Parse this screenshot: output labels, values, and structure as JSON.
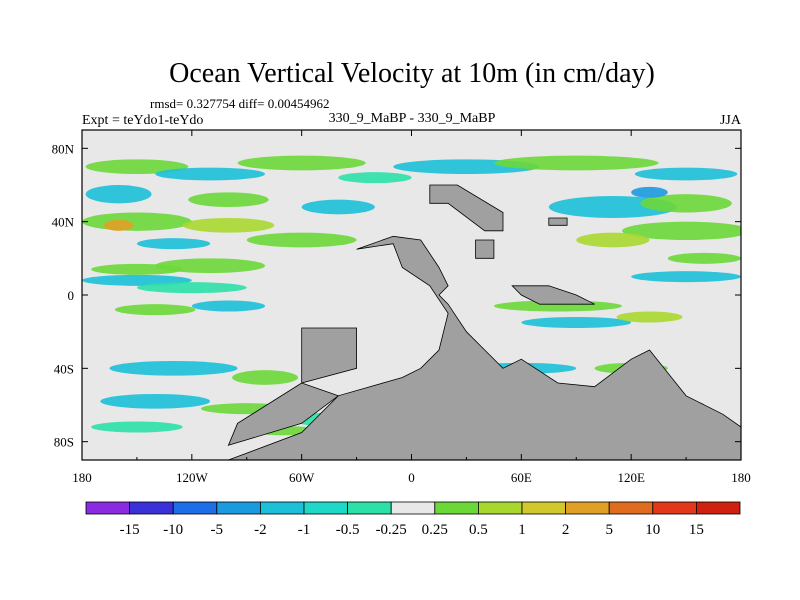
{
  "chart_data": {
    "type": "heatmap",
    "title": "Ocean Vertical Velocity at 10m (in cm/day)",
    "stats_line": "rmsd= 0.327754 diff= 0.00454962",
    "left_label": "Expt = teYdo1-teYdo",
    "center_label": "330_9_MaBP - 330_9_MaBP",
    "right_label": "JJA",
    "x_ticks": [
      "180",
      "120W",
      "60W",
      "0",
      "60E",
      "120E",
      "180"
    ],
    "x_tick_values": [
      -180,
      -120,
      -60,
      0,
      60,
      120,
      180
    ],
    "y_ticks": [
      "80N",
      "40N",
      "0",
      "40S",
      "80S"
    ],
    "y_tick_values": [
      80,
      40,
      0,
      -40,
      -80
    ],
    "xlim": [
      -180,
      180
    ],
    "ylim": [
      -90,
      90
    ],
    "colorbar_labels": [
      "-15",
      "-10",
      "-5",
      "-2",
      "-1",
      "-0.5",
      "-0.25",
      "0.25",
      "0.5",
      "1",
      "2",
      "5",
      "10",
      "15"
    ],
    "colorbar_colors": [
      "#8a2be2",
      "#3a32d8",
      "#1e6ee8",
      "#1c9ae0",
      "#1cc0d8",
      "#20d8c8",
      "#2ce0a8",
      "#e8e8e8",
      "#6cd838",
      "#a8d830",
      "#d0c82c",
      "#e0a028",
      "#e06c20",
      "#e03818",
      "#d02010"
    ],
    "land_color": "#a0a0a0",
    "background_color": "#e8e8e8"
  }
}
